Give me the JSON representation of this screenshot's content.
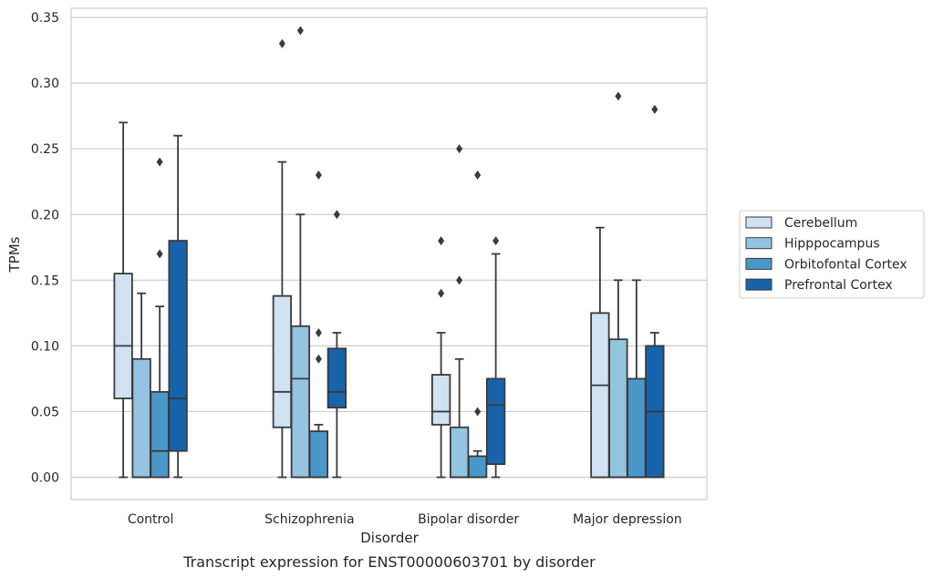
{
  "chart_data": {
    "type": "boxplot",
    "caption": "Transcript expression for ENST00000603701 by disorder",
    "xlabel": "Disorder",
    "ylabel": "TPMs",
    "ylim": [
      -0.017,
      0.357
    ],
    "yticks": [
      "0.00",
      "0.05",
      "0.10",
      "0.15",
      "0.20",
      "0.25",
      "0.30",
      "0.35"
    ],
    "ytick_values": [
      0,
      0.05,
      0.1,
      0.15,
      0.2,
      0.25,
      0.3,
      0.35
    ],
    "grid": true,
    "legend_position": "right",
    "categories": [
      "Control",
      "Schizophrenia",
      "Bipolar disorder",
      "Major depression"
    ],
    "series": [
      {
        "name": "Cerebellum",
        "color": "#d0e1f2",
        "boxes": [
          {
            "whislo": 0.0,
            "q1": 0.06,
            "med": 0.1,
            "q3": 0.155,
            "whishi": 0.27,
            "fliers": []
          },
          {
            "whislo": 0.0,
            "q1": 0.038,
            "med": 0.065,
            "q3": 0.138,
            "whishi": 0.24,
            "fliers": [
              0.33
            ]
          },
          {
            "whislo": 0.0,
            "q1": 0.04,
            "med": 0.05,
            "q3": 0.078,
            "whishi": 0.11,
            "fliers": [
              0.14,
              0.18
            ]
          },
          {
            "whislo": 0.0,
            "q1": 0.0,
            "med": 0.07,
            "q3": 0.125,
            "whishi": 0.19,
            "fliers": []
          }
        ]
      },
      {
        "name": "Hipppocampus",
        "color": "#94c4df",
        "boxes": [
          {
            "whislo": 0.0,
            "q1": 0.0,
            "med": 0.0,
            "q3": 0.09,
            "whishi": 0.14,
            "fliers": []
          },
          {
            "whislo": 0.0,
            "q1": 0.0,
            "med": 0.075,
            "q3": 0.115,
            "whishi": 0.2,
            "fliers": [
              0.34
            ]
          },
          {
            "whislo": 0.0,
            "q1": 0.0,
            "med": 0.0,
            "q3": 0.038,
            "whishi": 0.09,
            "fliers": [
              0.15,
              0.25
            ]
          },
          {
            "whislo": 0.0,
            "q1": 0.0,
            "med": 0.0,
            "q3": 0.105,
            "whishi": 0.15,
            "fliers": [
              0.29
            ]
          }
        ]
      },
      {
        "name": "Orbitofontal Cortex",
        "color": "#4a98c9",
        "boxes": [
          {
            "whislo": 0.0,
            "q1": 0.0,
            "med": 0.02,
            "q3": 0.065,
            "whishi": 0.13,
            "fliers": [
              0.17,
              0.24
            ]
          },
          {
            "whislo": 0.0,
            "q1": 0.0,
            "med": 0.0,
            "q3": 0.035,
            "whishi": 0.04,
            "fliers": [
              0.09,
              0.11,
              0.23
            ]
          },
          {
            "whislo": 0.0,
            "q1": 0.0,
            "med": 0.0,
            "q3": 0.016,
            "whishi": 0.02,
            "fliers": [
              0.05,
              0.23
            ]
          },
          {
            "whislo": 0.0,
            "q1": 0.0,
            "med": 0.0,
            "q3": 0.075,
            "whishi": 0.15,
            "fliers": []
          }
        ]
      },
      {
        "name": "Prefrontal Cortex",
        "color": "#1764ab",
        "boxes": [
          {
            "whislo": 0.0,
            "q1": 0.02,
            "med": 0.06,
            "q3": 0.18,
            "whishi": 0.26,
            "fliers": []
          },
          {
            "whislo": 0.0,
            "q1": 0.053,
            "med": 0.065,
            "q3": 0.098,
            "whishi": 0.11,
            "fliers": [
              0.2
            ]
          },
          {
            "whislo": 0.0,
            "q1": 0.01,
            "med": 0.055,
            "q3": 0.075,
            "whishi": 0.17,
            "fliers": [
              0.18
            ]
          },
          {
            "whislo": 0.0,
            "q1": 0.0,
            "med": 0.05,
            "q3": 0.1,
            "whishi": 0.11,
            "fliers": [
              0.28
            ]
          }
        ]
      }
    ]
  }
}
